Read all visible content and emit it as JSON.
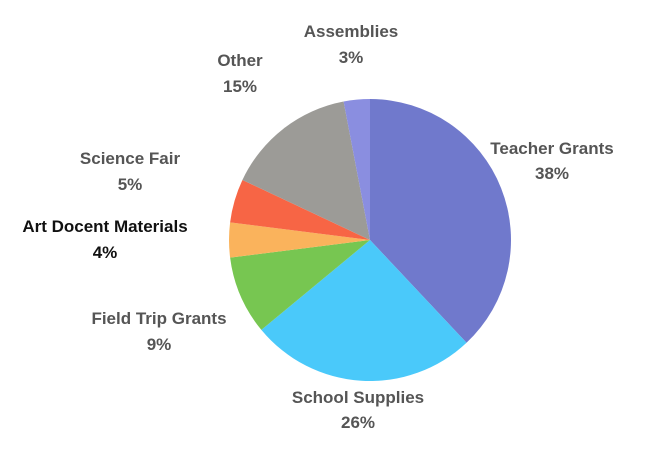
{
  "chart_data": {
    "type": "pie",
    "title": "",
    "slices": [
      {
        "label": "Teacher Grants",
        "pct_label": "38%",
        "value": 38,
        "color": "#7079cc"
      },
      {
        "label": "School Supplies",
        "pct_label": "26%",
        "value": 26,
        "color": "#4ac9fa"
      },
      {
        "label": "Field Trip Grants",
        "pct_label": "9%",
        "value": 9,
        "color": "#77c651"
      },
      {
        "label": "Art Docent Materials",
        "pct_label": "4%",
        "value": 4,
        "color": "#fab35c"
      },
      {
        "label": "Science Fair",
        "pct_label": "5%",
        "value": 5,
        "color": "#f76545"
      },
      {
        "label": "Other",
        "pct_label": "15%",
        "value": 15,
        "color": "#9c9b97"
      },
      {
        "label": "Assemblies",
        "pct_label": "3%",
        "value": 3,
        "color": "#8a8ee0"
      }
    ],
    "start": "12 o'clock",
    "direction": "clockwise",
    "legend": "none",
    "labels": "outside"
  }
}
